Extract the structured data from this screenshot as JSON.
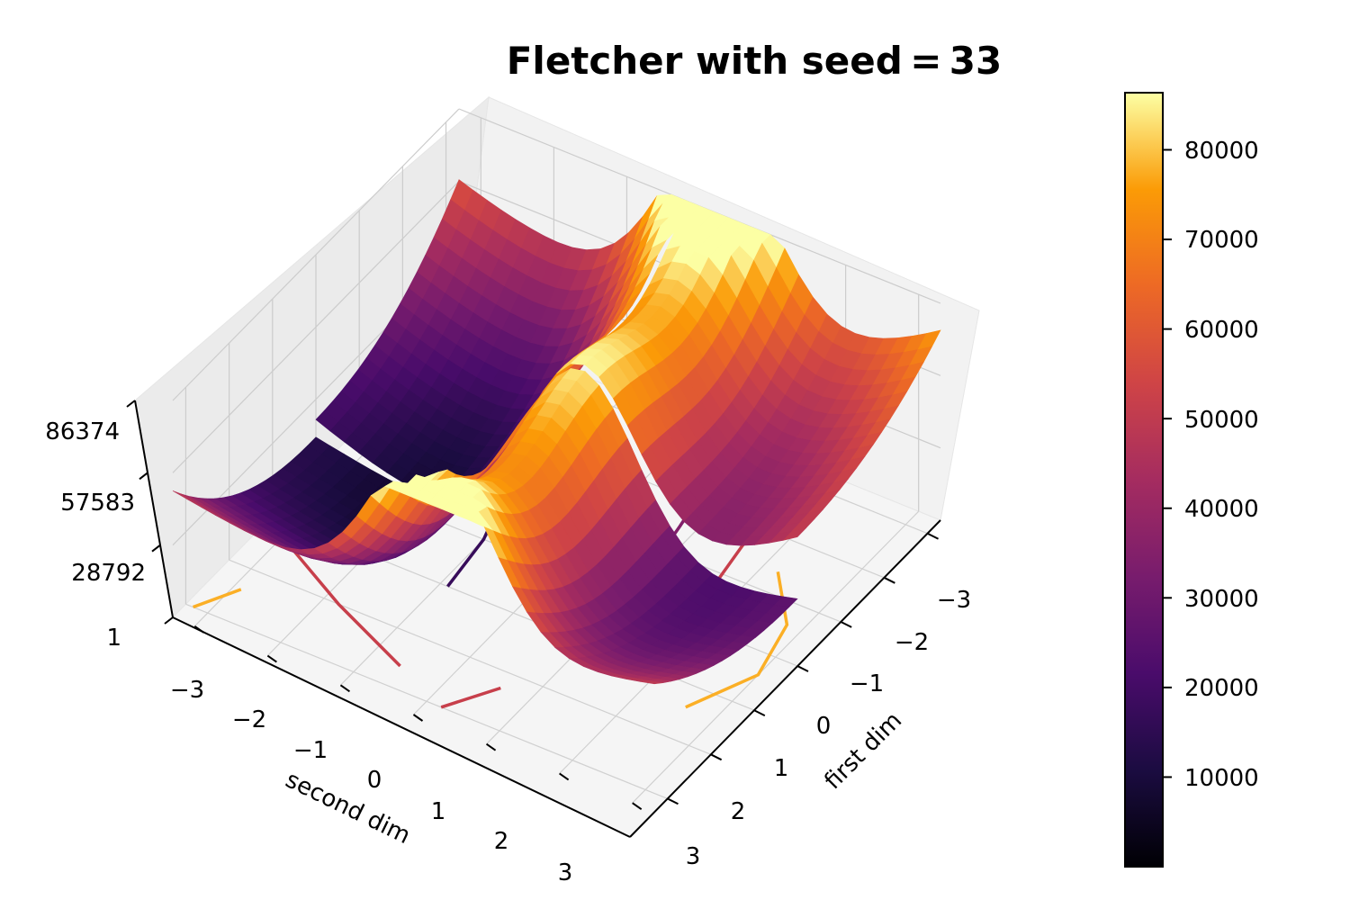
{
  "chart_data": {
    "type": "surface3d",
    "title": "Fletcher with seed = 33",
    "xlabel": "first dim",
    "ylabel": "second dim",
    "zlabel": "",
    "colormap": "inferno",
    "x_ticks": [
      "−3",
      "−2",
      "−1",
      "0",
      "1",
      "2",
      "3"
    ],
    "y_ticks": [
      "−3",
      "−2",
      "−1",
      "0",
      "1",
      "2",
      "3"
    ],
    "z_ticks": [
      "1",
      "28792",
      "57583",
      "86374"
    ],
    "zlim": [
      1,
      86374
    ],
    "xlim": [
      -3.3,
      3.3
    ],
    "ylim": [
      -3.3,
      3.3
    ],
    "colorbar": {
      "ticks": [
        "10000",
        "20000",
        "30000",
        "40000",
        "50000",
        "60000",
        "70000",
        "80000"
      ],
      "range": [
        1,
        86374
      ]
    },
    "contours": true,
    "grid": true
  }
}
